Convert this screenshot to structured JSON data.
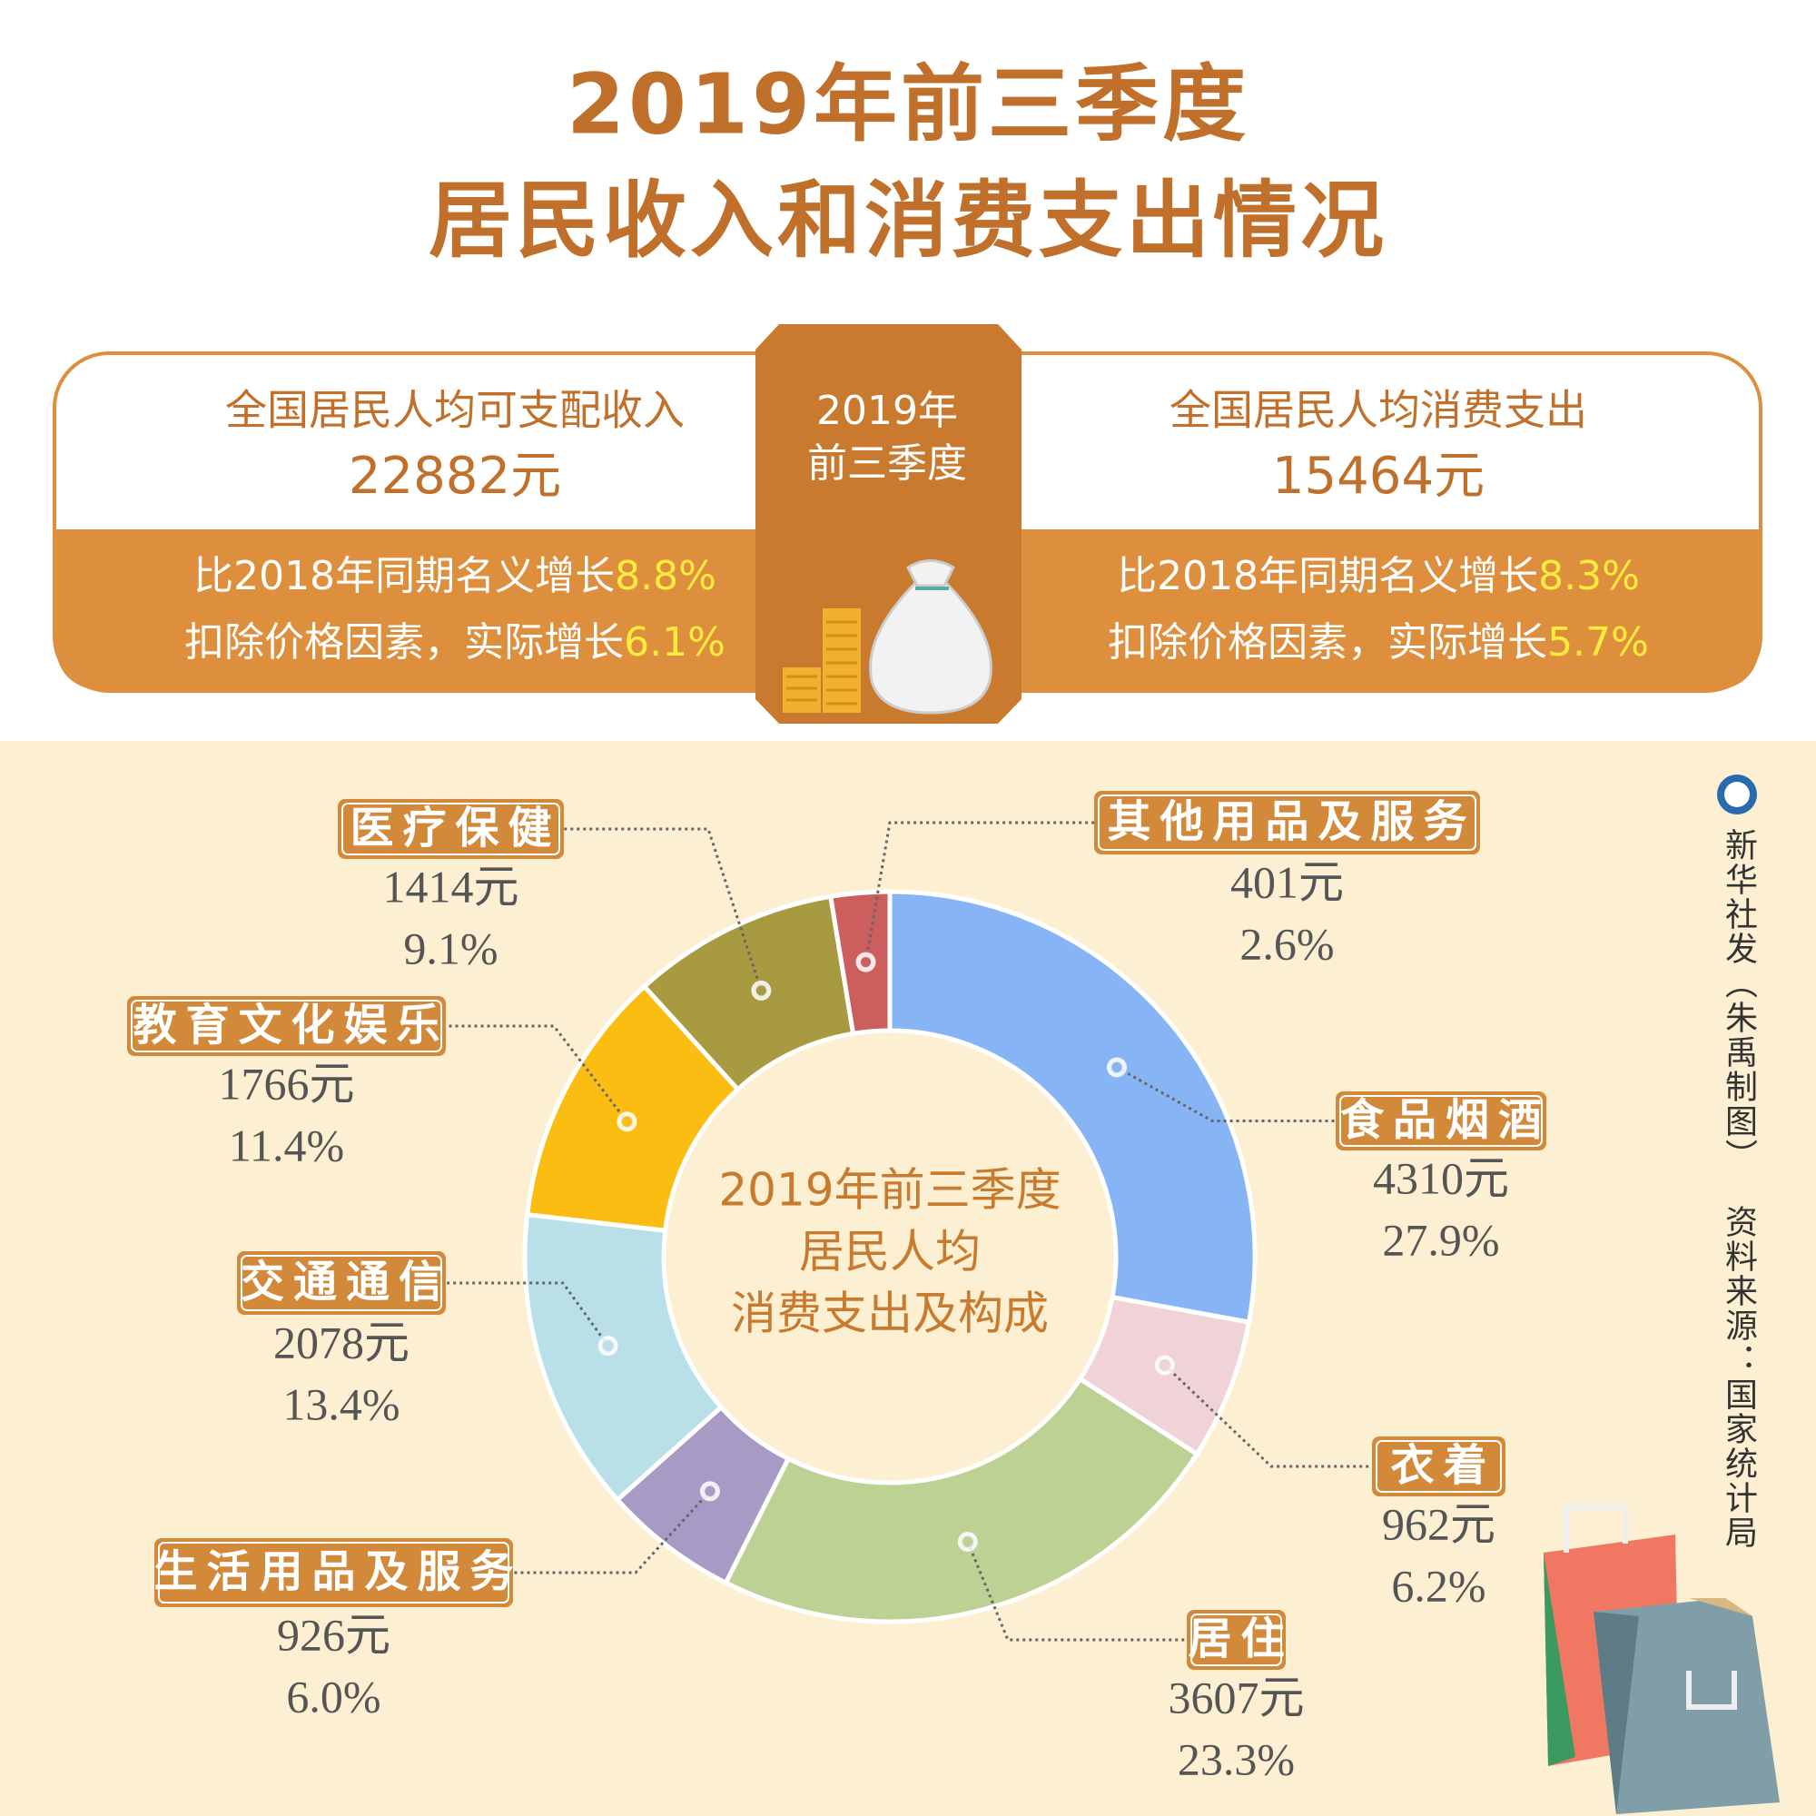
{
  "header": {
    "title": [
      "2019年前三季度",
      "居民收入和消费支出情况"
    ]
  },
  "summary": {
    "period": [
      "2019年",
      "前三季度"
    ],
    "income": {
      "label": "全国居民人均可支配收入",
      "amount": "22882元",
      "nominal_text": "比2018年同期名义增长",
      "nominal": "8.8%",
      "real_text": "扣除价格因素，实际增长",
      "real": "6.1%"
    },
    "spending": {
      "label": "全国居民人均消费支出",
      "amount": "15464元",
      "nominal_text": "比2018年同期名义增长",
      "nominal": "8.3%",
      "real_text": "扣除价格因素，实际增长",
      "real": "5.7%"
    }
  },
  "credits": {
    "publisher": "新华社发（朱禹制图）",
    "source": "资料来源：国家统计局"
  },
  "chart_data": {
    "type": "donut",
    "title": [
      "2019年前三季度",
      "居民人均",
      "消费支出及构成"
    ],
    "categories": [
      "食品烟酒",
      "衣着",
      "居住",
      "生活用品及服务",
      "交通通信",
      "教育文化娱乐",
      "医疗保健",
      "其他用品及服务"
    ],
    "values": [
      4310,
      962,
      3607,
      926,
      2078,
      1766,
      1414,
      401
    ],
    "value_labels": [
      "4310元",
      "962元",
      "3607元",
      "926元",
      "2078元",
      "1766元",
      "1414元",
      "401元"
    ],
    "shares": [
      "27.9%",
      "6.2%",
      "23.3%",
      "6.0%",
      "13.4%",
      "11.4%",
      "9.1%",
      "2.6%"
    ],
    "colors": [
      "#86b4f5",
      "#f0d3d6",
      "#bdd194",
      "#a79ac4",
      "#b9dfe8",
      "#fbbd12",
      "#a89a40",
      "#cd5e5e"
    ]
  }
}
